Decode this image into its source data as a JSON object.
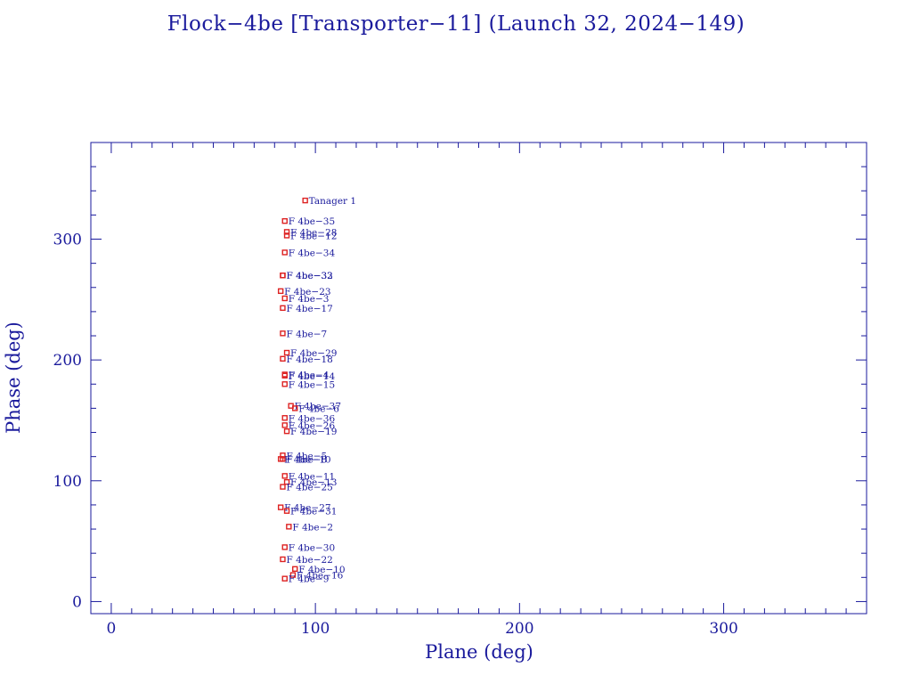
{
  "title": "Flock−4be [Transporter−11] (Launch 32, 2024−149)",
  "chart_data": {
    "type": "scatter",
    "xlabel": "Plane (deg)",
    "ylabel": "Phase (deg)",
    "xlim": [
      -10,
      370
    ],
    "ylim": [
      -10,
      380
    ],
    "xticks": [
      0,
      100,
      200,
      300
    ],
    "yticks": [
      0,
      100,
      200,
      300
    ],
    "x_minor_step": 10,
    "y_minor_step": 20,
    "grid": false,
    "marker_color": "#dd2222",
    "axis_color": "#1a1a9c",
    "points": [
      {
        "label": "Tanager 1",
        "x": 95,
        "y": 332
      },
      {
        "label": "F 4be−35",
        "x": 85,
        "y": 315
      },
      {
        "label": "F 4be−28",
        "x": 86,
        "y": 306
      },
      {
        "label": "F 4be−12",
        "x": 86,
        "y": 303
      },
      {
        "label": "F 4be−34",
        "x": 85,
        "y": 289
      },
      {
        "label": "F 4be−33",
        "x": 84,
        "y": 270
      },
      {
        "label": "F 4be−32",
        "x": 84,
        "y": 270
      },
      {
        "label": "F 4be−23",
        "x": 83,
        "y": 257
      },
      {
        "label": "F 4be−3",
        "x": 85,
        "y": 251
      },
      {
        "label": "F 4be−17",
        "x": 84,
        "y": 243
      },
      {
        "label": "F 4be−7",
        "x": 84,
        "y": 222
      },
      {
        "label": "F 4be−29",
        "x": 86,
        "y": 206
      },
      {
        "label": "F 4be−18",
        "x": 84,
        "y": 201
      },
      {
        "label": "F 4be−4",
        "x": 85,
        "y": 188
      },
      {
        "label": "F 4be−14",
        "x": 85,
        "y": 187
      },
      {
        "label": "F 4be−15",
        "x": 85,
        "y": 180
      },
      {
        "label": "F 4be−37",
        "x": 88,
        "y": 162
      },
      {
        "label": "F 4be−6",
        "x": 90,
        "y": 160
      },
      {
        "label": "F 4be−36",
        "x": 85,
        "y": 152
      },
      {
        "label": "F 4be−26",
        "x": 85,
        "y": 146
      },
      {
        "label": "F 4be−19",
        "x": 86,
        "y": 141
      },
      {
        "label": "F 4be−5",
        "x": 84,
        "y": 121
      },
      {
        "label": "F 4be−8",
        "x": 84,
        "y": 118
      },
      {
        "label": "F 4be−10",
        "x": 83,
        "y": 118
      },
      {
        "label": "F 4be−11",
        "x": 85,
        "y": 104
      },
      {
        "label": "F 4be−13",
        "x": 86,
        "y": 99
      },
      {
        "label": "F 4be−25",
        "x": 84,
        "y": 95
      },
      {
        "label": "F 4be−27",
        "x": 83,
        "y": 78
      },
      {
        "label": "F 4be−31",
        "x": 86,
        "y": 75
      },
      {
        "label": "F 4be−2",
        "x": 87,
        "y": 62
      },
      {
        "label": "F 4be−30",
        "x": 85,
        "y": 45
      },
      {
        "label": "F 4be−22",
        "x": 84,
        "y": 35
      },
      {
        "label": "F 4be−10",
        "x": 90,
        "y": 27
      },
      {
        "label": "F 4be−16",
        "x": 89,
        "y": 22
      },
      {
        "label": "F 4be−9",
        "x": 85,
        "y": 19
      }
    ]
  }
}
